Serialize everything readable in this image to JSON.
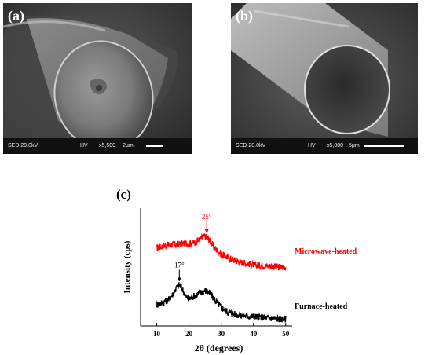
{
  "figure": {
    "panel_a": {
      "label": "(a)",
      "info": {
        "detector": "SED 20.0kV",
        "mode": "HV",
        "magnification": "x5,500",
        "scale": "2μm"
      }
    },
    "panel_b": {
      "label": "(b)",
      "info": {
        "detector": "SED 20.0kV",
        "mode": "HV",
        "magnification": "x5,000",
        "scale": "5μm"
      }
    },
    "panel_c": {
      "label": "(c)"
    }
  },
  "chart_data": {
    "type": "line",
    "title": "",
    "xlabel": "2θ (degrees)",
    "ylabel": "Intensity (cps)",
    "xlim": [
      5,
      52
    ],
    "ylim": [
      0,
      10
    ],
    "xticks": [
      10,
      20,
      30,
      40,
      50
    ],
    "grid": false,
    "series": [
      {
        "name": "Microwave-heated",
        "color": "#ff0000",
        "x": [
          10,
          12,
          14,
          16,
          18,
          20,
          22,
          24,
          25,
          26,
          27,
          28,
          30,
          32,
          34,
          36,
          38,
          40,
          44,
          48,
          50
        ],
        "y": [
          6.6,
          6.8,
          6.9,
          6.9,
          7.0,
          7.0,
          7.1,
          7.5,
          7.6,
          7.4,
          7.0,
          6.6,
          6.1,
          5.8,
          5.6,
          5.4,
          5.3,
          5.2,
          5.1,
          5.0,
          5.0
        ]
      },
      {
        "name": "Furnace-heated",
        "color": "#000000",
        "x": [
          10,
          12,
          14,
          15,
          16,
          17,
          18,
          19,
          20,
          22,
          24,
          25,
          26,
          27,
          28,
          30,
          32,
          34,
          36,
          40,
          44,
          48,
          50
        ],
        "y": [
          1.8,
          2.0,
          2.3,
          2.7,
          3.2,
          3.5,
          3.1,
          2.5,
          2.3,
          2.6,
          2.9,
          3.0,
          2.9,
          2.6,
          2.2,
          1.6,
          1.2,
          1.0,
          0.9,
          0.8,
          0.7,
          0.6,
          0.6
        ]
      }
    ],
    "annotations": [
      {
        "text": "25°",
        "x": 25.5,
        "y": 7.6,
        "color": "#ff0000"
      },
      {
        "text": "17°",
        "x": 17,
        "y": 3.5,
        "color": "#000000"
      }
    ]
  }
}
